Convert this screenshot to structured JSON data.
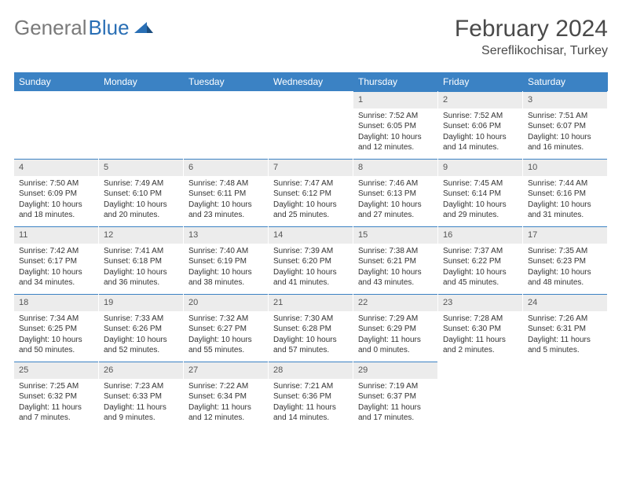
{
  "logo": {
    "gray": "General",
    "blue": "Blue"
  },
  "title": "February 2024",
  "location": "Sereflikochisar, Turkey",
  "colors": {
    "header_bg": "#3b82c4",
    "header_text": "#ffffff",
    "daynum_bg": "#ececec",
    "daynum_border": "#3b82c4",
    "text": "#333333",
    "logo_gray": "#7a7a7a",
    "logo_blue": "#2a6fb5"
  },
  "day_names": [
    "Sunday",
    "Monday",
    "Tuesday",
    "Wednesday",
    "Thursday",
    "Friday",
    "Saturday"
  ],
  "weeks": [
    [
      {
        "n": "",
        "sr": "",
        "ss": "",
        "dl": ""
      },
      {
        "n": "",
        "sr": "",
        "ss": "",
        "dl": ""
      },
      {
        "n": "",
        "sr": "",
        "ss": "",
        "dl": ""
      },
      {
        "n": "",
        "sr": "",
        "ss": "",
        "dl": ""
      },
      {
        "n": "1",
        "sr": "Sunrise: 7:52 AM",
        "ss": "Sunset: 6:05 PM",
        "dl": "Daylight: 10 hours and 12 minutes."
      },
      {
        "n": "2",
        "sr": "Sunrise: 7:52 AM",
        "ss": "Sunset: 6:06 PM",
        "dl": "Daylight: 10 hours and 14 minutes."
      },
      {
        "n": "3",
        "sr": "Sunrise: 7:51 AM",
        "ss": "Sunset: 6:07 PM",
        "dl": "Daylight: 10 hours and 16 minutes."
      }
    ],
    [
      {
        "n": "4",
        "sr": "Sunrise: 7:50 AM",
        "ss": "Sunset: 6:09 PM",
        "dl": "Daylight: 10 hours and 18 minutes."
      },
      {
        "n": "5",
        "sr": "Sunrise: 7:49 AM",
        "ss": "Sunset: 6:10 PM",
        "dl": "Daylight: 10 hours and 20 minutes."
      },
      {
        "n": "6",
        "sr": "Sunrise: 7:48 AM",
        "ss": "Sunset: 6:11 PM",
        "dl": "Daylight: 10 hours and 23 minutes."
      },
      {
        "n": "7",
        "sr": "Sunrise: 7:47 AM",
        "ss": "Sunset: 6:12 PM",
        "dl": "Daylight: 10 hours and 25 minutes."
      },
      {
        "n": "8",
        "sr": "Sunrise: 7:46 AM",
        "ss": "Sunset: 6:13 PM",
        "dl": "Daylight: 10 hours and 27 minutes."
      },
      {
        "n": "9",
        "sr": "Sunrise: 7:45 AM",
        "ss": "Sunset: 6:14 PM",
        "dl": "Daylight: 10 hours and 29 minutes."
      },
      {
        "n": "10",
        "sr": "Sunrise: 7:44 AM",
        "ss": "Sunset: 6:16 PM",
        "dl": "Daylight: 10 hours and 31 minutes."
      }
    ],
    [
      {
        "n": "11",
        "sr": "Sunrise: 7:42 AM",
        "ss": "Sunset: 6:17 PM",
        "dl": "Daylight: 10 hours and 34 minutes."
      },
      {
        "n": "12",
        "sr": "Sunrise: 7:41 AM",
        "ss": "Sunset: 6:18 PM",
        "dl": "Daylight: 10 hours and 36 minutes."
      },
      {
        "n": "13",
        "sr": "Sunrise: 7:40 AM",
        "ss": "Sunset: 6:19 PM",
        "dl": "Daylight: 10 hours and 38 minutes."
      },
      {
        "n": "14",
        "sr": "Sunrise: 7:39 AM",
        "ss": "Sunset: 6:20 PM",
        "dl": "Daylight: 10 hours and 41 minutes."
      },
      {
        "n": "15",
        "sr": "Sunrise: 7:38 AM",
        "ss": "Sunset: 6:21 PM",
        "dl": "Daylight: 10 hours and 43 minutes."
      },
      {
        "n": "16",
        "sr": "Sunrise: 7:37 AM",
        "ss": "Sunset: 6:22 PM",
        "dl": "Daylight: 10 hours and 45 minutes."
      },
      {
        "n": "17",
        "sr": "Sunrise: 7:35 AM",
        "ss": "Sunset: 6:23 PM",
        "dl": "Daylight: 10 hours and 48 minutes."
      }
    ],
    [
      {
        "n": "18",
        "sr": "Sunrise: 7:34 AM",
        "ss": "Sunset: 6:25 PM",
        "dl": "Daylight: 10 hours and 50 minutes."
      },
      {
        "n": "19",
        "sr": "Sunrise: 7:33 AM",
        "ss": "Sunset: 6:26 PM",
        "dl": "Daylight: 10 hours and 52 minutes."
      },
      {
        "n": "20",
        "sr": "Sunrise: 7:32 AM",
        "ss": "Sunset: 6:27 PM",
        "dl": "Daylight: 10 hours and 55 minutes."
      },
      {
        "n": "21",
        "sr": "Sunrise: 7:30 AM",
        "ss": "Sunset: 6:28 PM",
        "dl": "Daylight: 10 hours and 57 minutes."
      },
      {
        "n": "22",
        "sr": "Sunrise: 7:29 AM",
        "ss": "Sunset: 6:29 PM",
        "dl": "Daylight: 11 hours and 0 minutes."
      },
      {
        "n": "23",
        "sr": "Sunrise: 7:28 AM",
        "ss": "Sunset: 6:30 PM",
        "dl": "Daylight: 11 hours and 2 minutes."
      },
      {
        "n": "24",
        "sr": "Sunrise: 7:26 AM",
        "ss": "Sunset: 6:31 PM",
        "dl": "Daylight: 11 hours and 5 minutes."
      }
    ],
    [
      {
        "n": "25",
        "sr": "Sunrise: 7:25 AM",
        "ss": "Sunset: 6:32 PM",
        "dl": "Daylight: 11 hours and 7 minutes."
      },
      {
        "n": "26",
        "sr": "Sunrise: 7:23 AM",
        "ss": "Sunset: 6:33 PM",
        "dl": "Daylight: 11 hours and 9 minutes."
      },
      {
        "n": "27",
        "sr": "Sunrise: 7:22 AM",
        "ss": "Sunset: 6:34 PM",
        "dl": "Daylight: 11 hours and 12 minutes."
      },
      {
        "n": "28",
        "sr": "Sunrise: 7:21 AM",
        "ss": "Sunset: 6:36 PM",
        "dl": "Daylight: 11 hours and 14 minutes."
      },
      {
        "n": "29",
        "sr": "Sunrise: 7:19 AM",
        "ss": "Sunset: 6:37 PM",
        "dl": "Daylight: 11 hours and 17 minutes."
      },
      {
        "n": "",
        "sr": "",
        "ss": "",
        "dl": ""
      },
      {
        "n": "",
        "sr": "",
        "ss": "",
        "dl": ""
      }
    ]
  ]
}
